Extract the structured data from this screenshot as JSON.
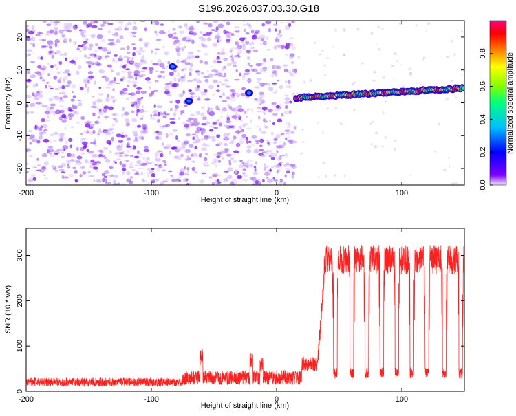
{
  "title": "S196.2026.037.03.30.G18",
  "chart_data": [
    {
      "type": "heatmap",
      "xlabel": "Height of straight line (km)",
      "ylabel": "Frequency (Hz)",
      "xlim": [
        -200,
        150
      ],
      "ylim": [
        -25,
        25
      ],
      "xticks": [
        -200,
        -100,
        0,
        100
      ],
      "yticks": [
        -20,
        -10,
        0,
        10,
        20
      ],
      "colorbar": {
        "label": "Normalized spectral amplitude",
        "range": [
          0,
          1
        ],
        "ticks": [
          "0.0",
          "0.2",
          "0.4",
          "0.6",
          "0.8"
        ],
        "colors": [
          "#f2eafc",
          "#7f00ff",
          "#0000ff",
          "#00bfff",
          "#00ff80",
          "#80ff00",
          "#ffff00",
          "#ff8000",
          "#ff0000",
          "#ff0080"
        ]
      },
      "features": [
        {
          "name": "diffuse noise",
          "x_range": [
            -200,
            15
          ],
          "freq_range": [
            -25,
            25
          ],
          "amplitude": 0.15
        },
        {
          "name": "strong signal trend",
          "x_range": [
            15,
            150
          ],
          "freq_start": 1.5,
          "freq_end": 4.5,
          "amplitude_max": 0.95
        },
        {
          "name": "blob",
          "x": -83,
          "freq": 11,
          "amplitude": 0.3
        },
        {
          "name": "blob",
          "x": -70,
          "freq": 0.5,
          "amplitude": 0.3
        },
        {
          "name": "blob",
          "x": -22,
          "freq": 3,
          "amplitude": 0.3
        }
      ]
    },
    {
      "type": "line",
      "xlabel": "Height of straight line (km)",
      "ylabel": "SNR (10 * v/v)",
      "xlim": [
        -200,
        150
      ],
      "ylim": [
        0,
        360
      ],
      "xticks": [
        -200,
        -100,
        0,
        100
      ],
      "yticks": [
        0,
        100,
        200,
        300
      ],
      "color": "#ff2020",
      "series": [
        {
          "name": "SNR",
          "segments": [
            {
              "x": [
                -200,
                -75
              ],
              "y": 20,
              "noise": 12
            },
            {
              "x": [
                -75,
                20
              ],
              "y": 30,
              "noise": 20
            },
            {
              "x": [
                20,
                33
              ],
              "y": 60,
              "noise": 20
            },
            {
              "x": [
                33,
                38
              ],
              "y": [
                70,
                250
              ],
              "noise": 25
            },
            {
              "x": [
                38,
                150
              ],
              "y": 290,
              "noise": 40
            }
          ],
          "spikes": [
            {
              "x": -60,
              "y": 95
            },
            {
              "x": -20,
              "y": 85
            },
            {
              "x": -12,
              "y": 75
            }
          ],
          "dips": [
            {
              "x": 47,
              "y": 40
            },
            {
              "x": 60,
              "y": 40
            },
            {
              "x": 72,
              "y": 40
            },
            {
              "x": 84,
              "y": 40
            },
            {
              "x": 96,
              "y": 40
            },
            {
              "x": 108,
              "y": 40
            },
            {
              "x": 120,
              "y": 40
            },
            {
              "x": 134,
              "y": 40
            },
            {
              "x": 147,
              "y": 40
            }
          ]
        }
      ]
    }
  ]
}
